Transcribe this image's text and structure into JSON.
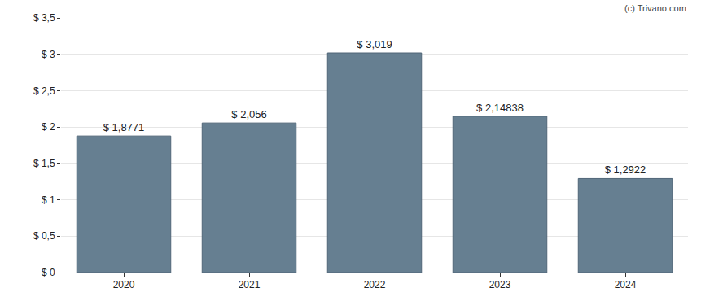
{
  "chart_data": {
    "type": "bar",
    "categories": [
      "2020",
      "2021",
      "2022",
      "2023",
      "2024"
    ],
    "values": [
      1.8771,
      2.056,
      3.019,
      2.14838,
      1.2922
    ],
    "value_labels": [
      "$ 1,8771",
      "$ 2,056",
      "$ 3,019",
      "$ 2,14838",
      "$ 1,2922"
    ],
    "data_labels": true,
    "color": "#667f91",
    "ylim": [
      0,
      3.5
    ],
    "yticks": [
      {
        "value": 0,
        "label": "$ 0"
      },
      {
        "value": 0.5,
        "label": "$ 0,5"
      },
      {
        "value": 1,
        "label": "$ 1"
      },
      {
        "value": 1.5,
        "label": "$ 1,5"
      },
      {
        "value": 2,
        "label": "$ 2"
      },
      {
        "value": 2.5,
        "label": "$ 2,5"
      },
      {
        "value": 3,
        "label": "$ 3"
      },
      {
        "value": 3.5,
        "label": "$ 3,5"
      }
    ],
    "grid": true,
    "annotations": [
      "(c) Trivano.com"
    ]
  }
}
